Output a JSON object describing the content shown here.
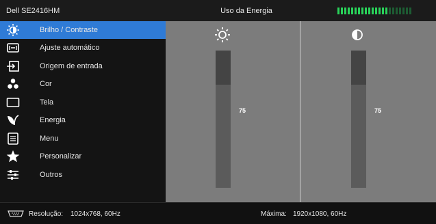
{
  "header": {
    "model": "Dell SE2416HM",
    "title": "Uso da Energia",
    "energy_level": 0.68,
    "energy_color": "#29d45a"
  },
  "menu": {
    "items": [
      {
        "label": "Brilho / Contraste",
        "icon": "brightness-contrast-icon",
        "active": true
      },
      {
        "label": "Ajuste automático",
        "icon": "auto-adjust-icon"
      },
      {
        "label": "Origem de entrada",
        "icon": "input-source-icon"
      },
      {
        "label": "Cor",
        "icon": "color-icon"
      },
      {
        "label": "Tela",
        "icon": "display-icon"
      },
      {
        "label": "Energia",
        "icon": "energy-icon"
      },
      {
        "label": "Menu",
        "icon": "menu-icon"
      },
      {
        "label": "Personalizar",
        "icon": "star-icon"
      },
      {
        "label": "Outros",
        "icon": "others-sliders-icon"
      }
    ],
    "active_color": "#2f7bd6"
  },
  "brightness": {
    "value": "75",
    "icon": "sun-icon"
  },
  "contrast": {
    "value": "75",
    "icon": "contrast-icon"
  },
  "footer": {
    "resolution_label": "Resolução:",
    "resolution_value": "1024x768, 60Hz",
    "max_label": "Máxima:",
    "max_value": "1920x1080, 60Hz",
    "cable_icon": "vga-cable-icon"
  }
}
